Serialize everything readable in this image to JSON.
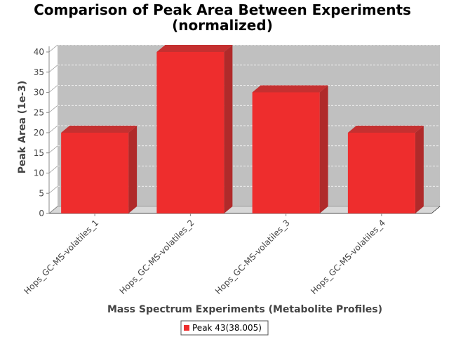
{
  "chart_data": {
    "type": "bar",
    "title_line1": "Comparison of Peak Area Between Experiments",
    "title_line2": "(normalized)",
    "xlabel": "Mass Spectrum Experiments (Metabolite Profiles)",
    "ylabel": "Peak Area (1e-3)",
    "categories": [
      "Hops_GC-MS-volatiles_1",
      "Hops_GC-MS-volatiles_2",
      "Hops_GC-MS-volatiles_3",
      "Hops_GC-MS-volatiles_4"
    ],
    "series": [
      {
        "name": "Peak 43(38.005)",
        "values": [
          20,
          40,
          30,
          20
        ],
        "color": "#ee2d2d"
      }
    ],
    "ylim": [
      0,
      40
    ],
    "yticks": [
      "0",
      "5",
      "10",
      "15",
      "20",
      "25",
      "30",
      "35",
      "40"
    ],
    "grid": true,
    "legend": "bottom-center",
    "plot_background": "#c0c0c0"
  }
}
